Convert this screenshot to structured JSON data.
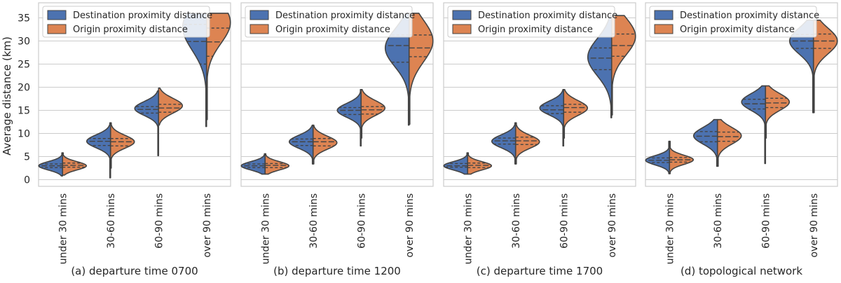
{
  "figure": {
    "ylabel": "Average distance (km)",
    "legend_labels": [
      "Destination proximity distance",
      "Origin proximity distance"
    ],
    "colors": {
      "destination": "#4c72b0",
      "origin": "#dd8452",
      "edge": "#444444",
      "grid": "#cccccc",
      "frame": "#cccccc"
    }
  },
  "chart_data": [
    {
      "type": "violin",
      "xlabel": "(a) departure time 0700",
      "categories": [
        "under 30 mins",
        "30-60 mins",
        "60-90 mins",
        "over 90 mins"
      ],
      "ylim": [
        -1,
        37
      ],
      "yticks": [
        0,
        5,
        10,
        15,
        20,
        25,
        30,
        35
      ],
      "legend": "top-left",
      "series": [
        {
          "name": "Destination proximity distance",
          "side": "left",
          "min": [
            0.8,
            0.4,
            5.2,
            11.5
          ],
          "max": [
            5.8,
            12.3,
            19.2,
            36.0
          ],
          "q1": [
            2.6,
            7.4,
            14.4,
            25.0
          ],
          "median": [
            3.0,
            8.3,
            15.2,
            29.9
          ],
          "q3": [
            3.4,
            8.9,
            15.8,
            33.6
          ],
          "peak": [
            3.0,
            8.3,
            15.4,
            33.0
          ],
          "spread": [
            0.9,
            1.4,
            1.5,
            5.0
          ]
        },
        {
          "name": "Origin proximity distance",
          "side": "right",
          "min": [
            1.0,
            2.5,
            11.8,
            13.0
          ],
          "max": [
            5.8,
            12.3,
            19.8,
            36.0
          ],
          "q1": [
            2.7,
            7.3,
            14.6,
            26.7
          ],
          "median": [
            3.1,
            8.2,
            15.5,
            29.8
          ],
          "q3": [
            3.6,
            8.9,
            16.3,
            32.8
          ],
          "peak": [
            3.0,
            8.2,
            16.0,
            34.0
          ],
          "spread": [
            0.9,
            1.4,
            1.6,
            4.5
          ]
        }
      ]
    },
    {
      "type": "violin",
      "xlabel": "(b) departure time 1200",
      "categories": [
        "under 30 mins",
        "30-60 mins",
        "60-90 mins",
        "over 90 mins"
      ],
      "ylim": [
        -1,
        37
      ],
      "yticks": [
        0,
        5,
        10,
        15,
        20,
        25,
        30,
        35
      ],
      "legend": "top-left",
      "series": [
        {
          "name": "Destination proximity distance",
          "side": "left",
          "min": [
            1.2,
            3.4,
            7.3,
            11.8
          ],
          "max": [
            5.6,
            11.8,
            19.5,
            36.0
          ],
          "q1": [
            2.6,
            7.4,
            14.1,
            25.4
          ],
          "median": [
            3.0,
            8.2,
            15.0,
            29.0
          ],
          "q3": [
            3.4,
            8.8,
            15.6,
            31.3
          ],
          "peak": [
            3.0,
            8.2,
            15.0,
            28.5
          ],
          "spread": [
            0.9,
            1.4,
            1.5,
            4.0
          ]
        },
        {
          "name": "Origin proximity distance",
          "side": "right",
          "min": [
            1.2,
            3.4,
            9.0,
            12.0
          ],
          "max": [
            5.6,
            11.8,
            19.5,
            36.0
          ],
          "q1": [
            2.6,
            7.3,
            14.2,
            26.6
          ],
          "median": [
            3.1,
            8.2,
            15.1,
            28.5
          ],
          "q3": [
            3.5,
            8.9,
            15.8,
            31.3
          ],
          "peak": [
            3.0,
            8.0,
            15.5,
            30.0
          ],
          "spread": [
            0.9,
            1.4,
            1.6,
            4.5
          ]
        }
      ]
    },
    {
      "type": "violin",
      "xlabel": "(c) departure time 1700",
      "categories": [
        "under 30 mins",
        "30-60 mins",
        "60-90 mins",
        "over 90 mins"
      ],
      "ylim": [
        -1,
        37
      ],
      "yticks": [
        0,
        5,
        10,
        15,
        20,
        25,
        30,
        35
      ],
      "legend": "top-left",
      "series": [
        {
          "name": "Destination proximity distance",
          "side": "left",
          "min": [
            1.2,
            3.4,
            7.3,
            13.4
          ],
          "max": [
            5.8,
            12.3,
            19.5,
            35.5
          ],
          "q1": [
            2.7,
            7.7,
            14.3,
            23.8
          ],
          "median": [
            3.0,
            8.4,
            15.1,
            26.3
          ],
          "q3": [
            3.5,
            9.0,
            16.0,
            28.5
          ],
          "peak": [
            3.0,
            8.3,
            15.5,
            26.5
          ],
          "spread": [
            0.9,
            1.4,
            1.5,
            4.0
          ]
        },
        {
          "name": "Origin proximity distance",
          "side": "right",
          "min": [
            1.2,
            3.4,
            9.0,
            14.0
          ],
          "max": [
            5.8,
            12.3,
            19.5,
            35.5
          ],
          "q1": [
            2.6,
            7.6,
            14.6,
            26.7
          ],
          "median": [
            3.1,
            8.4,
            15.6,
            29.0
          ],
          "q3": [
            3.6,
            9.2,
            16.3,
            31.5
          ],
          "peak": [
            3.0,
            8.2,
            15.5,
            31.0
          ],
          "spread": [
            0.9,
            1.4,
            1.6,
            4.0
          ]
        }
      ]
    },
    {
      "type": "violin",
      "xlabel": "(d) topological network",
      "categories": [
        "under 30 mins",
        "30-60 mins",
        "60-90 mins",
        "over 90 mins"
      ],
      "ylim": [
        -1,
        37
      ],
      "yticks": [
        0,
        5,
        10,
        15,
        20,
        25,
        30,
        35
      ],
      "legend": "top-left",
      "series": [
        {
          "name": "Destination proximity distance",
          "side": "left",
          "min": [
            1.3,
            2.9,
            3.5,
            14.5
          ],
          "max": [
            8.3,
            13.0,
            20.3,
            34.5
          ],
          "q1": [
            3.7,
            8.2,
            15.3,
            28.4
          ],
          "median": [
            4.2,
            9.4,
            16.4,
            30.0
          ],
          "q3": [
            4.7,
            10.4,
            17.4,
            31.4
          ],
          "peak": [
            4.2,
            9.5,
            16.8,
            30.0
          ],
          "spread": [
            1.0,
            1.8,
            1.8,
            2.8
          ]
        },
        {
          "name": "Origin proximity distance",
          "side": "right",
          "min": [
            1.3,
            2.9,
            9.0,
            14.5
          ],
          "max": [
            8.3,
            13.0,
            20.3,
            34.5
          ],
          "q1": [
            3.8,
            8.3,
            15.6,
            28.4
          ],
          "median": [
            4.3,
            9.3,
            16.6,
            30.0
          ],
          "q3": [
            4.8,
            10.3,
            17.6,
            31.5
          ],
          "peak": [
            4.3,
            9.5,
            16.8,
            30.0
          ],
          "spread": [
            1.0,
            1.8,
            1.8,
            2.8
          ]
        }
      ]
    }
  ]
}
